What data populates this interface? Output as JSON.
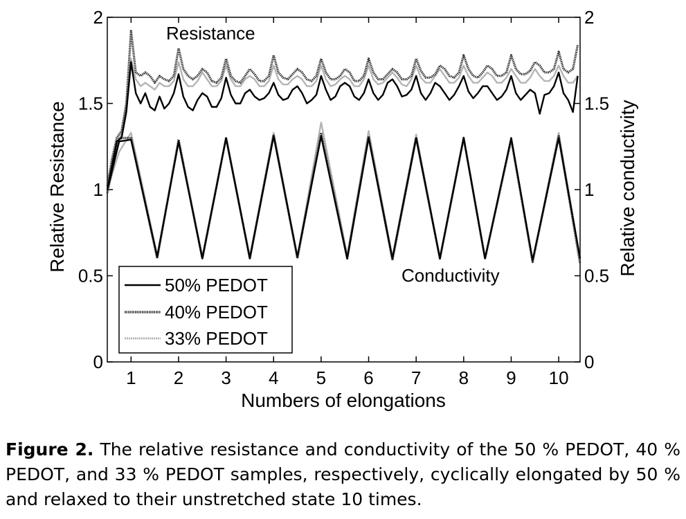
{
  "chart_data": {
    "type": "line",
    "xlabel": "Numbers of elongations",
    "ylabel_left": "Relative Resistance",
    "ylabel_right": "Relative conductivity",
    "xlim": [
      0.5,
      10.45
    ],
    "ylim": [
      0,
      2
    ],
    "x_ticks": [
      "1",
      "2",
      "3",
      "4",
      "5",
      "6",
      "7",
      "8",
      "9",
      "10"
    ],
    "y_ticks_left": [
      "0",
      "0.5",
      "1",
      "1.5",
      "2"
    ],
    "y_ticks_right": [
      "0",
      "0.5",
      "1",
      "1.5",
      "2"
    ],
    "grid": false,
    "legend_position": "bottom-left",
    "annotations": [
      "Resistance",
      "Conductivity"
    ],
    "series": [
      {
        "name": "50% PEDOT",
        "color": "#000000",
        "style": "solid",
        "resistance": {
          "x": [
            0.5,
            0.6,
            0.7,
            0.8,
            0.9,
            1.0,
            1.1,
            1.2,
            1.3,
            1.4,
            1.5,
            1.6,
            1.7,
            1.8,
            1.9,
            2.0,
            2.1,
            2.2,
            2.3,
            2.4,
            2.5,
            2.6,
            2.7,
            2.8,
            2.9,
            3.0,
            3.1,
            3.2,
            3.3,
            3.4,
            3.5,
            3.6,
            3.7,
            3.8,
            3.9,
            4.0,
            4.1,
            4.2,
            4.3,
            4.4,
            4.5,
            4.6,
            4.7,
            4.8,
            4.9,
            5.0,
            5.1,
            5.2,
            5.3,
            5.4,
            5.5,
            5.6,
            5.7,
            5.8,
            5.9,
            6.0,
            6.1,
            6.2,
            6.3,
            6.4,
            6.5,
            6.6,
            6.7,
            6.8,
            6.9,
            7.0,
            7.1,
            7.2,
            7.3,
            7.4,
            7.5,
            7.6,
            7.7,
            7.8,
            7.9,
            8.0,
            8.1,
            8.2,
            8.3,
            8.4,
            8.5,
            8.6,
            8.7,
            8.8,
            8.9,
            9.0,
            9.1,
            9.2,
            9.3,
            9.4,
            9.5,
            9.6,
            9.7,
            9.8,
            9.9,
            10.0,
            10.1,
            10.2,
            10.3,
            10.4
          ],
          "y": [
            1.0,
            1.14,
            1.28,
            1.3,
            1.45,
            1.74,
            1.56,
            1.5,
            1.56,
            1.48,
            1.46,
            1.54,
            1.47,
            1.5,
            1.56,
            1.67,
            1.54,
            1.48,
            1.46,
            1.52,
            1.56,
            1.54,
            1.48,
            1.48,
            1.53,
            1.65,
            1.55,
            1.5,
            1.5,
            1.56,
            1.58,
            1.54,
            1.52,
            1.53,
            1.56,
            1.62,
            1.55,
            1.52,
            1.53,
            1.58,
            1.6,
            1.56,
            1.5,
            1.52,
            1.55,
            1.66,
            1.58,
            1.52,
            1.54,
            1.6,
            1.62,
            1.6,
            1.54,
            1.52,
            1.56,
            1.64,
            1.56,
            1.52,
            1.55,
            1.62,
            1.64,
            1.6,
            1.54,
            1.55,
            1.58,
            1.66,
            1.56,
            1.52,
            1.56,
            1.62,
            1.6,
            1.56,
            1.52,
            1.55,
            1.6,
            1.66,
            1.57,
            1.53,
            1.56,
            1.6,
            1.6,
            1.56,
            1.52,
            1.54,
            1.58,
            1.66,
            1.56,
            1.52,
            1.55,
            1.58,
            1.56,
            1.44,
            1.55,
            1.56,
            1.6,
            1.68,
            1.56,
            1.52,
            1.45,
            1.66
          ]
        },
        "conductivity": {
          "x": [
            0.5,
            0.75,
            1.0,
            1.55,
            2.0,
            2.5,
            3.0,
            3.5,
            4.0,
            4.5,
            5.0,
            5.55,
            6.0,
            6.5,
            7.0,
            7.5,
            8.0,
            8.45,
            9.0,
            9.45,
            10.0,
            10.45
          ],
          "y": [
            1.0,
            1.28,
            1.29,
            0.61,
            1.28,
            0.6,
            1.3,
            0.6,
            1.31,
            0.61,
            1.31,
            0.6,
            1.3,
            0.6,
            1.3,
            0.6,
            1.3,
            0.6,
            1.3,
            0.59,
            1.3,
            0.6
          ]
        }
      },
      {
        "name": "40% PEDOT",
        "color": "#333333",
        "style": "dotted",
        "resistance": {
          "x": [
            0.5,
            0.6,
            0.7,
            0.8,
            0.9,
            1.0,
            1.1,
            1.2,
            1.3,
            1.4,
            1.5,
            1.6,
            1.7,
            1.8,
            1.9,
            2.0,
            2.1,
            2.2,
            2.3,
            2.4,
            2.5,
            2.6,
            2.7,
            2.8,
            2.9,
            3.0,
            3.1,
            3.2,
            3.3,
            3.4,
            3.5,
            3.6,
            3.7,
            3.8,
            3.9,
            4.0,
            4.1,
            4.2,
            4.3,
            4.4,
            4.5,
            4.6,
            4.7,
            4.8,
            4.9,
            5.0,
            5.1,
            5.2,
            5.3,
            5.4,
            5.5,
            5.6,
            5.7,
            5.8,
            5.9,
            6.0,
            6.1,
            6.2,
            6.3,
            6.4,
            6.5,
            6.6,
            6.7,
            6.8,
            6.9,
            7.0,
            7.1,
            7.2,
            7.3,
            7.4,
            7.5,
            7.6,
            7.7,
            7.8,
            7.9,
            8.0,
            8.1,
            8.2,
            8.3,
            8.4,
            8.5,
            8.6,
            8.7,
            8.8,
            8.9,
            9.0,
            9.1,
            9.2,
            9.3,
            9.4,
            9.5,
            9.6,
            9.7,
            9.8,
            9.9,
            10.0,
            10.1,
            10.2,
            10.3,
            10.4
          ],
          "y": [
            1.02,
            1.18,
            1.3,
            1.34,
            1.5,
            1.92,
            1.68,
            1.66,
            1.68,
            1.66,
            1.62,
            1.66,
            1.64,
            1.63,
            1.66,
            1.82,
            1.7,
            1.66,
            1.64,
            1.66,
            1.7,
            1.68,
            1.63,
            1.62,
            1.65,
            1.76,
            1.66,
            1.63,
            1.62,
            1.66,
            1.7,
            1.67,
            1.63,
            1.63,
            1.66,
            1.78,
            1.68,
            1.65,
            1.64,
            1.67,
            1.7,
            1.68,
            1.64,
            1.63,
            1.66,
            1.76,
            1.68,
            1.64,
            1.64,
            1.66,
            1.7,
            1.68,
            1.63,
            1.63,
            1.66,
            1.76,
            1.68,
            1.64,
            1.64,
            1.67,
            1.7,
            1.68,
            1.64,
            1.64,
            1.66,
            1.76,
            1.69,
            1.65,
            1.65,
            1.67,
            1.72,
            1.7,
            1.66,
            1.65,
            1.68,
            1.78,
            1.7,
            1.66,
            1.65,
            1.68,
            1.72,
            1.7,
            1.66,
            1.66,
            1.68,
            1.78,
            1.7,
            1.67,
            1.67,
            1.69,
            1.74,
            1.72,
            1.68,
            1.68,
            1.7,
            1.8,
            1.7,
            1.68,
            1.7,
            1.84
          ]
        },
        "conductivity": {
          "x": [
            0.5,
            0.75,
            1.0,
            1.55,
            2.0,
            2.5,
            3.0,
            3.5,
            4.0,
            4.5,
            5.0,
            5.55,
            6.0,
            6.5,
            7.0,
            7.5,
            8.0,
            8.45,
            9.0,
            9.45,
            10.0,
            10.45
          ],
          "y": [
            0.98,
            1.3,
            1.3,
            0.6,
            1.29,
            0.6,
            1.3,
            0.6,
            1.32,
            0.6,
            1.33,
            0.6,
            1.31,
            0.59,
            1.3,
            0.6,
            1.3,
            0.6,
            1.29,
            0.58,
            1.31,
            0.57
          ]
        }
      },
      {
        "name": "33% PEDOT",
        "color": "#b4b4b4",
        "style": "solid",
        "resistance": {
          "x": [
            0.5,
            0.6,
            0.7,
            0.8,
            0.9,
            1.0,
            1.1,
            1.2,
            1.3,
            1.4,
            1.5,
            1.6,
            1.7,
            1.8,
            1.9,
            2.0,
            2.1,
            2.2,
            2.3,
            2.4,
            2.5,
            2.6,
            2.7,
            2.8,
            2.9,
            3.0,
            3.1,
            3.2,
            3.3,
            3.4,
            3.5,
            3.6,
            3.7,
            3.8,
            3.9,
            4.0,
            4.1,
            4.2,
            4.3,
            4.4,
            4.5,
            4.6,
            4.7,
            4.8,
            4.9,
            5.0,
            5.1,
            5.2,
            5.3,
            5.4,
            5.5,
            5.6,
            5.7,
            5.8,
            5.9,
            6.0,
            6.1,
            6.2,
            6.3,
            6.4,
            6.5,
            6.6,
            6.7,
            6.8,
            6.9,
            7.0,
            7.1,
            7.2,
            7.3,
            7.4,
            7.5,
            7.6,
            7.7,
            7.8,
            7.9,
            8.0,
            8.1,
            8.2,
            8.3,
            8.4,
            8.5,
            8.6,
            8.7,
            8.8,
            8.9,
            9.0,
            9.1,
            9.2,
            9.3,
            9.4,
            9.5,
            9.6,
            9.7,
            9.8,
            9.9,
            10.0,
            10.1,
            10.2,
            10.3,
            10.4
          ],
          "y": [
            1.0,
            1.16,
            1.26,
            1.32,
            1.48,
            1.76,
            1.64,
            1.6,
            1.62,
            1.6,
            1.58,
            1.62,
            1.6,
            1.6,
            1.63,
            1.74,
            1.64,
            1.6,
            1.6,
            1.63,
            1.68,
            1.64,
            1.6,
            1.6,
            1.63,
            1.72,
            1.64,
            1.6,
            1.6,
            1.64,
            1.66,
            1.64,
            1.6,
            1.6,
            1.63,
            1.72,
            1.64,
            1.61,
            1.61,
            1.64,
            1.66,
            1.64,
            1.6,
            1.6,
            1.63,
            1.72,
            1.64,
            1.6,
            1.61,
            1.64,
            1.66,
            1.64,
            1.6,
            1.6,
            1.64,
            1.72,
            1.64,
            1.61,
            1.62,
            1.65,
            1.68,
            1.65,
            1.61,
            1.6,
            1.64,
            1.72,
            1.65,
            1.62,
            1.62,
            1.66,
            1.7,
            1.66,
            1.62,
            1.62,
            1.65,
            1.72,
            1.66,
            1.62,
            1.62,
            1.65,
            1.68,
            1.66,
            1.62,
            1.62,
            1.65,
            1.7,
            1.66,
            1.62,
            1.62,
            1.65,
            1.7,
            1.66,
            1.63,
            1.63,
            1.66,
            1.72,
            1.66,
            1.62,
            1.62,
            1.66
          ]
        },
        "conductivity": {
          "x": [
            0.5,
            0.75,
            1.0,
            1.55,
            2.0,
            2.5,
            3.0,
            3.5,
            4.0,
            4.5,
            5.0,
            5.55,
            6.0,
            6.5,
            7.0,
            7.5,
            8.0,
            8.45,
            9.0,
            9.45,
            10.0,
            10.45
          ],
          "y": [
            1.0,
            1.22,
            1.33,
            0.62,
            1.27,
            0.61,
            1.3,
            0.61,
            1.33,
            0.61,
            1.39,
            0.62,
            1.34,
            0.61,
            1.32,
            0.6,
            1.3,
            0.6,
            1.3,
            0.58,
            1.33,
            0.6
          ]
        }
      }
    ]
  },
  "caption": {
    "label": "Figure 2.",
    "text": "The relative resistance and conductivity of the 50 % PEDOT, 40 % PEDOT, and 33 % PEDOT samples, respectively, cyclically elongated by 50 % and relaxed to their unstretched state 10 times."
  }
}
